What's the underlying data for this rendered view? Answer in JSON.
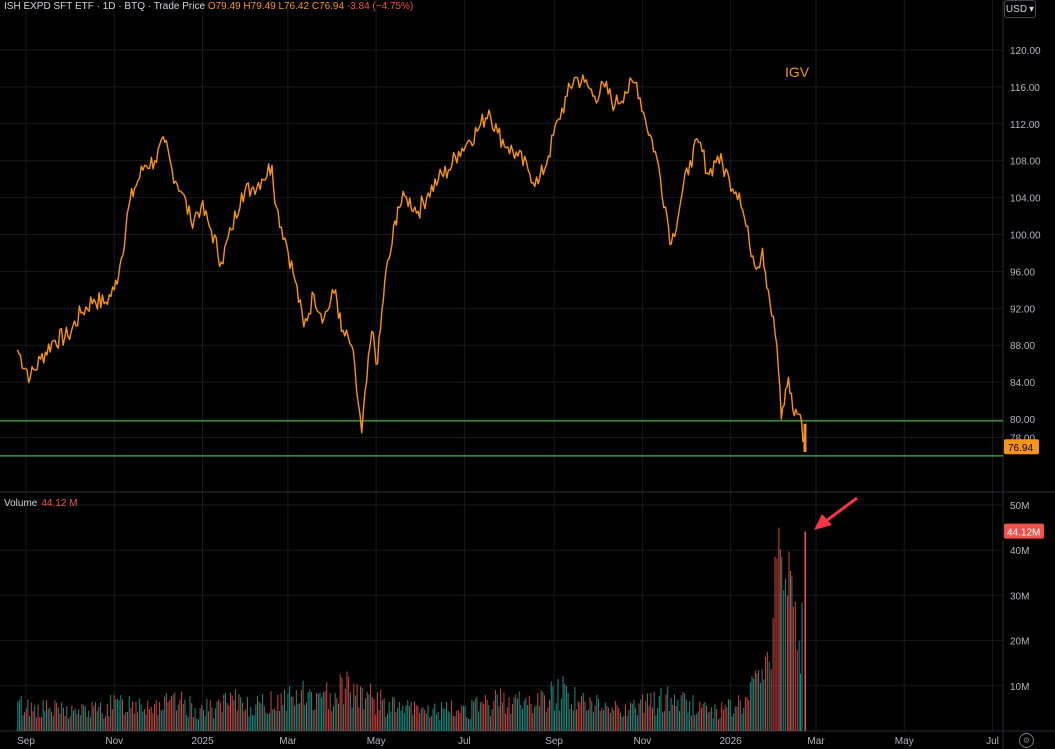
{
  "header": {
    "symbol": "ISH EXPD SFT ETF",
    "interval": "1D",
    "exchange": "BTQ",
    "price_type": "Trade Price",
    "open": "O79.49",
    "high": "H79.49",
    "low": "L76.42",
    "close": "C76.94",
    "change": "-3.84 (−4.75%)"
  },
  "currency": "USD",
  "currency_arrow": "▾",
  "volume_header": {
    "label": "Volume",
    "value": "44.12 M"
  },
  "annotation_label": "IGV",
  "settings_icon": "⚙",
  "colors": {
    "price": "#f7931a",
    "support": "#4caf50",
    "vol_up": "#26a69a",
    "vol_down": "#ef5350",
    "arrow": "#f23645"
  },
  "chart_data": [
    {
      "type": "line",
      "panel": "price",
      "ylim": [
        74,
        122
      ],
      "yticks": [
        "78.00",
        "80.00",
        "84.00",
        "88.00",
        "92.00",
        "96.00",
        "100.00",
        "104.00",
        "108.00",
        "112.00",
        "116.00",
        "120.00"
      ],
      "x_ticks": [
        "Sep",
        "Nov",
        "2025",
        "Mar",
        "May",
        "Jul",
        "Sep",
        "Nov",
        "2026",
        "Mar",
        "May",
        "Jul"
      ],
      "last_price_label": "76.94",
      "last_price": 76.94,
      "support_levels": [
        79.8,
        76.0
      ],
      "series": [
        {
          "points": [
            [
              "2024-08-26",
              87.5
            ],
            [
              "2024-09-04",
              84.5
            ],
            [
              "2024-09-11",
              86.5
            ],
            [
              "2024-09-20",
              88.5
            ],
            [
              "2024-09-30",
              89.0
            ],
            [
              "2024-10-09",
              91.5
            ],
            [
              "2024-10-18",
              93.0
            ],
            [
              "2024-10-25",
              92.5
            ],
            [
              "2024-11-01",
              94.0
            ],
            [
              "2024-11-06",
              97.5
            ],
            [
              "2024-11-11",
              103.0
            ],
            [
              "2024-11-15",
              105.0
            ],
            [
              "2024-11-22",
              107.5
            ],
            [
              "2024-11-29",
              108.0
            ],
            [
              "2024-12-06",
              110.0
            ],
            [
              "2024-12-11",
              107.0
            ],
            [
              "2024-12-18",
              104.5
            ],
            [
              "2024-12-24",
              101.5
            ],
            [
              "2024-12-31",
              103.0
            ],
            [
              "2025-01-07",
              100.5
            ],
            [
              "2025-01-14",
              97.0
            ],
            [
              "2025-01-21",
              100.5
            ],
            [
              "2025-01-28",
              104.5
            ],
            [
              "2025-02-04",
              105.0
            ],
            [
              "2025-02-11",
              106.0
            ],
            [
              "2025-02-18",
              107.5
            ],
            [
              "2025-02-21",
              103.0
            ],
            [
              "2025-02-28",
              99.0
            ],
            [
              "2025-03-06",
              95.0
            ],
            [
              "2025-03-12",
              90.0
            ],
            [
              "2025-03-19",
              93.5
            ],
            [
              "2025-03-26",
              91.0
            ],
            [
              "2025-04-03",
              94.0
            ],
            [
              "2025-04-07",
              89.5
            ],
            [
              "2025-04-14",
              88.0
            ],
            [
              "2025-04-21",
              78.5
            ],
            [
              "2025-04-28",
              89.5
            ],
            [
              "2025-05-02",
              86.0
            ],
            [
              "2025-05-07",
              95.0
            ],
            [
              "2025-05-12",
              99.0
            ],
            [
              "2025-05-16",
              103.0
            ],
            [
              "2025-05-22",
              104.0
            ],
            [
              "2025-05-30",
              102.5
            ],
            [
              "2025-06-06",
              104.5
            ],
            [
              "2025-06-13",
              106.0
            ],
            [
              "2025-06-20",
              107.0
            ],
            [
              "2025-06-27",
              109.0
            ],
            [
              "2025-07-03",
              110.0
            ],
            [
              "2025-07-11",
              111.5
            ],
            [
              "2025-07-18",
              113.5
            ],
            [
              "2025-07-24",
              111.0
            ],
            [
              "2025-07-31",
              109.5
            ],
            [
              "2025-08-07",
              108.5
            ],
            [
              "2025-08-14",
              107.0
            ],
            [
              "2025-08-21",
              105.5
            ],
            [
              "2025-08-28",
              108.5
            ],
            [
              "2025-09-04",
              112.5
            ],
            [
              "2025-09-10",
              115.0
            ],
            [
              "2025-09-15",
              117.0
            ],
            [
              "2025-09-22",
              116.5
            ],
            [
              "2025-09-29",
              115.0
            ],
            [
              "2025-10-06",
              116.0
            ],
            [
              "2025-10-13",
              114.0
            ],
            [
              "2025-10-20",
              115.5
            ],
            [
              "2025-10-28",
              116.5
            ],
            [
              "2025-11-03",
              112.5
            ],
            [
              "2025-11-10",
              109.0
            ],
            [
              "2025-11-17",
              103.0
            ],
            [
              "2025-11-21",
              99.0
            ],
            [
              "2025-11-28",
              104.0
            ],
            [
              "2025-12-04",
              108.0
            ],
            [
              "2025-12-10",
              110.0
            ],
            [
              "2025-12-17",
              106.5
            ],
            [
              "2025-12-23",
              108.5
            ],
            [
              "2025-12-31",
              106.0
            ],
            [
              "2026-01-07",
              104.5
            ],
            [
              "2026-01-14",
              99.0
            ],
            [
              "2026-01-20",
              96.5
            ],
            [
              "2026-01-23",
              98.5
            ],
            [
              "2026-01-27",
              94.0
            ],
            [
              "2026-02-02",
              88.0
            ],
            [
              "2026-02-05",
              80.0
            ],
            [
              "2026-02-10",
              84.5
            ],
            [
              "2026-02-13",
              81.0
            ],
            [
              "2026-02-18",
              80.5
            ],
            [
              "2026-02-20",
              77.5
            ]
          ]
        }
      ]
    },
    {
      "type": "bar",
      "panel": "volume",
      "ylim": [
        0,
        52
      ],
      "unit": "M",
      "yticks": [
        "10M",
        "20M",
        "30M",
        "40M",
        "50M"
      ],
      "last_volume_label": "44.12M",
      "last_volume": 44.12,
      "bars": [
        [
          "2024-08-26",
          6.5,
          "up"
        ],
        [
          "2024-09-09",
          5.8,
          "down"
        ],
        [
          "2024-09-23",
          5.2,
          "up"
        ],
        [
          "2024-10-07",
          4.9,
          "up"
        ],
        [
          "2024-10-21",
          5.4,
          "down"
        ],
        [
          "2024-11-04",
          6.8,
          "up"
        ],
        [
          "2024-11-18",
          7.2,
          "up"
        ],
        [
          "2024-12-02",
          6.4,
          "down"
        ],
        [
          "2024-12-16",
          6.9,
          "down"
        ],
        [
          "2024-12-30",
          5.1,
          "up"
        ],
        [
          "2025-01-13",
          6.3,
          "down"
        ],
        [
          "2025-01-27",
          7.5,
          "up"
        ],
        [
          "2025-02-10",
          6.1,
          "up"
        ],
        [
          "2025-02-24",
          8.4,
          "down"
        ],
        [
          "2025-03-10",
          9.0,
          "down"
        ],
        [
          "2025-03-24",
          7.4,
          "up"
        ],
        [
          "2025-04-07",
          11.8,
          "down"
        ],
        [
          "2025-04-21",
          9.5,
          "up"
        ],
        [
          "2025-05-05",
          6.8,
          "up"
        ],
        [
          "2025-05-19",
          5.6,
          "up"
        ],
        [
          "2025-06-02",
          5.2,
          "down"
        ],
        [
          "2025-06-16",
          5.0,
          "up"
        ],
        [
          "2025-06-30",
          5.5,
          "up"
        ],
        [
          "2025-07-14",
          6.0,
          "down"
        ],
        [
          "2025-07-28",
          8.5,
          "down"
        ],
        [
          "2025-08-11",
          6.7,
          "up"
        ],
        [
          "2025-08-25",
          7.9,
          "down"
        ],
        [
          "2025-09-08",
          10.5,
          "up"
        ],
        [
          "2025-09-22",
          6.5,
          "down"
        ],
        [
          "2025-10-06",
          6.3,
          "up"
        ],
        [
          "2025-10-20",
          5.9,
          "down"
        ],
        [
          "2025-11-03",
          6.6,
          "down"
        ],
        [
          "2025-11-17",
          8.1,
          "down"
        ],
        [
          "2025-12-01",
          7.0,
          "up"
        ],
        [
          "2025-12-15",
          5.6,
          "down"
        ],
        [
          "2025-12-29",
          5.2,
          "down"
        ],
        [
          "2026-01-12",
          7.6,
          "down"
        ],
        [
          "2026-01-20",
          13.5,
          "down"
        ],
        [
          "2026-01-26",
          17.5,
          "down"
        ],
        [
          "2026-01-30",
          25.0,
          "down"
        ],
        [
          "2026-02-03",
          45.0,
          "down"
        ],
        [
          "2026-02-05",
          38.5,
          "up"
        ],
        [
          "2026-02-09",
          30.0,
          "down"
        ],
        [
          "2026-02-11",
          35.5,
          "down"
        ],
        [
          "2026-02-13",
          27.5,
          "down"
        ],
        [
          "2026-02-17",
          20.0,
          "up"
        ],
        [
          "2026-02-20",
          44.12,
          "down"
        ]
      ]
    }
  ]
}
